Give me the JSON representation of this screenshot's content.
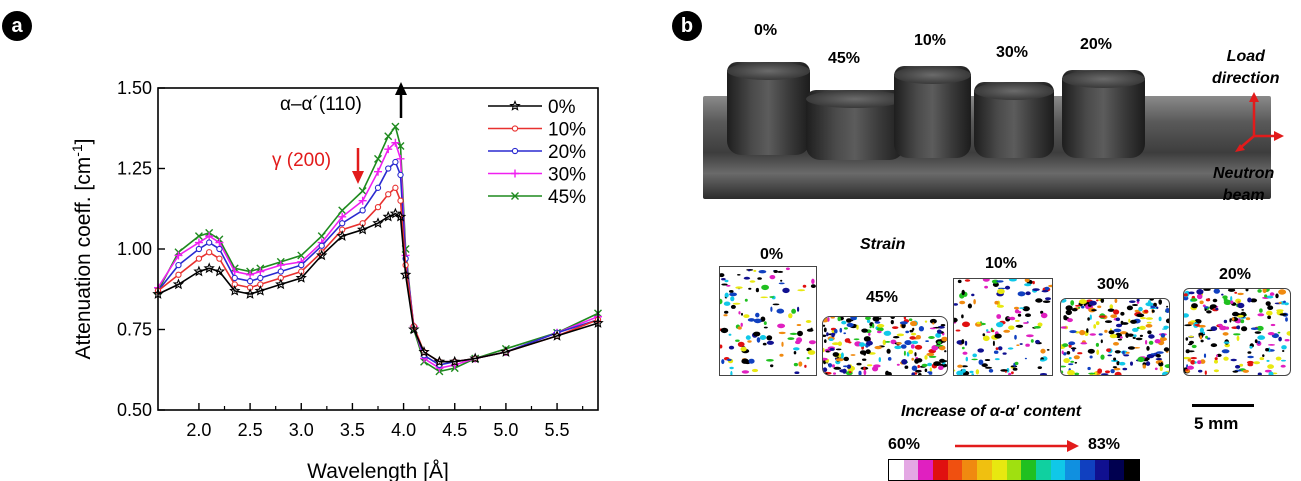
{
  "panel_a": {
    "label": "a",
    "annotation_alpha": "α–α´(110)",
    "annotation_gamma": "γ (200)",
    "legend": [
      {
        "name": "0%",
        "color": "#000000",
        "marker": "star"
      },
      {
        "name": "10%",
        "color": "#e8312f",
        "marker": "circle"
      },
      {
        "name": "20%",
        "color": "#2a2ad0",
        "marker": "circle"
      },
      {
        "name": "30%",
        "color": "#f020f0",
        "marker": "plus"
      },
      {
        "name": "45%",
        "color": "#1e8a1e",
        "marker": "x"
      }
    ]
  },
  "chart_data": {
    "type": "line",
    "title": "",
    "xlabel": "Wavelength [Å]",
    "ylabel": "Attenuation coeff. [cm",
    "ylabel_sup": "-1",
    "ylabel_end": "]",
    "xlim": [
      1.6,
      5.9
    ],
    "ylim": [
      0.5,
      1.5
    ],
    "xticks": [
      "2.0",
      "2.5",
      "3.0",
      "3.5",
      "4.0",
      "4.5",
      "5.0",
      "5.5"
    ],
    "yticks": [
      "0.50",
      "0.75",
      "1.00",
      "1.25",
      "1.50"
    ],
    "x": [
      1.6,
      1.8,
      2.0,
      2.1,
      2.2,
      2.35,
      2.5,
      2.6,
      2.8,
      3.0,
      3.2,
      3.4,
      3.6,
      3.75,
      3.85,
      3.92,
      3.97,
      4.02,
      4.1,
      4.2,
      4.35,
      4.5,
      4.7,
      5.0,
      5.5,
      5.9
    ],
    "series": [
      {
        "name": "0%",
        "values": [
          0.86,
          0.89,
          0.93,
          0.94,
          0.93,
          0.87,
          0.86,
          0.87,
          0.89,
          0.91,
          0.98,
          1.04,
          1.06,
          1.08,
          1.1,
          1.11,
          1.1,
          0.92,
          0.75,
          0.68,
          0.65,
          0.65,
          0.66,
          0.68,
          0.73,
          0.77
        ]
      },
      {
        "name": "10%",
        "values": [
          0.87,
          0.92,
          0.97,
          0.99,
          0.97,
          0.89,
          0.88,
          0.89,
          0.91,
          0.93,
          0.99,
          1.06,
          1.08,
          1.13,
          1.17,
          1.19,
          1.15,
          0.95,
          0.76,
          0.68,
          0.65,
          0.65,
          0.66,
          0.68,
          0.73,
          0.78
        ]
      },
      {
        "name": "20%",
        "values": [
          0.87,
          0.95,
          1.0,
          1.02,
          1.0,
          0.91,
          0.9,
          0.91,
          0.93,
          0.95,
          1.01,
          1.08,
          1.12,
          1.19,
          1.25,
          1.27,
          1.23,
          0.97,
          0.76,
          0.67,
          0.64,
          0.65,
          0.66,
          0.68,
          0.74,
          0.78
        ]
      },
      {
        "name": "30%",
        "values": [
          0.88,
          0.98,
          1.02,
          1.04,
          1.02,
          0.93,
          0.92,
          0.93,
          0.95,
          0.96,
          1.02,
          1.1,
          1.15,
          1.24,
          1.31,
          1.33,
          1.28,
          0.98,
          0.76,
          0.66,
          0.63,
          0.64,
          0.66,
          0.68,
          0.74,
          0.79
        ]
      },
      {
        "name": "45%",
        "values": [
          0.87,
          0.99,
          1.04,
          1.05,
          1.03,
          0.94,
          0.93,
          0.94,
          0.96,
          0.98,
          1.04,
          1.12,
          1.18,
          1.28,
          1.35,
          1.38,
          1.32,
          1.0,
          0.75,
          0.65,
          0.62,
          0.63,
          0.66,
          0.69,
          0.74,
          0.8
        ]
      }
    ]
  },
  "panel_b": {
    "label": "b",
    "photo_labels": [
      "0%",
      "45%",
      "10%",
      "30%",
      "20%"
    ],
    "load_direction": [
      "Load",
      "direction"
    ],
    "neutron_beam": [
      "Neutron",
      "beam"
    ],
    "strain_title": "Strain",
    "map_labels": [
      "0%",
      "45%",
      "10%",
      "30%",
      "20%"
    ],
    "scale_bar": "5 mm",
    "content_title": "Increase of α-α' content",
    "range_low": "60%",
    "range_high": "83%",
    "colorbar_colors": [
      "#ffffff",
      "#e4a8e4",
      "#e020c0",
      "#e01010",
      "#f05010",
      "#f08a10",
      "#f0c010",
      "#e8e810",
      "#a0e010",
      "#20c020",
      "#10d0a0",
      "#10c8e8",
      "#1090e0",
      "#1040c0",
      "#101090",
      "#000050",
      "#000000"
    ]
  }
}
